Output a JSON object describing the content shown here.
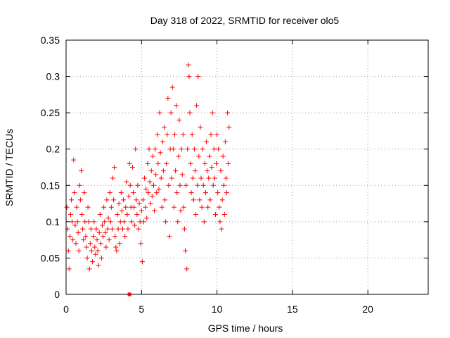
{
  "chart_data": {
    "type": "scatter",
    "title": "Day 318 of 2022, SRMTID for receiver olo5",
    "xlabel": "GPS time / hours",
    "ylabel": "SRMTID / TECUs",
    "xlim": [
      0,
      24
    ],
    "ylim": [
      0,
      0.35
    ],
    "xticks": [
      0,
      5,
      10,
      15,
      20
    ],
    "xtick_labels": [
      "0",
      "5",
      "10",
      "15",
      "20"
    ],
    "yticks": [
      0,
      0.05,
      0.1,
      0.15,
      0.2,
      0.25,
      0.3,
      0.35
    ],
    "ytick_labels": [
      "0",
      "0.05",
      "0.1",
      "0.15",
      "0.2",
      "0.25",
      "0.3",
      "0.35"
    ],
    "grid": true,
    "marker": "+",
    "color": "#ff0000",
    "outlier_marker": {
      "x": 4.2,
      "y": 0.0,
      "shape": "square"
    },
    "series": [
      {
        "name": "SRMTID",
        "points": [
          [
            0.05,
            0.12
          ],
          [
            0.1,
            0.09
          ],
          [
            0.15,
            0.06
          ],
          [
            0.2,
            0.035
          ],
          [
            0.25,
            0.08
          ],
          [
            0.3,
            0.11
          ],
          [
            0.35,
            0.13
          ],
          [
            0.4,
            0.1
          ],
          [
            0.45,
            0.075
          ],
          [
            0.5,
            0.185
          ],
          [
            0.55,
            0.14
          ],
          [
            0.6,
            0.095
          ],
          [
            0.65,
            0.07
          ],
          [
            0.7,
            0.12
          ],
          [
            0.75,
            0.1
          ],
          [
            0.8,
            0.085
          ],
          [
            0.85,
            0.06
          ],
          [
            0.9,
            0.15
          ],
          [
            0.95,
            0.13
          ],
          [
            1.0,
            0.17
          ],
          [
            1.05,
            0.11
          ],
          [
            1.1,
            0.09
          ],
          [
            1.15,
            0.075
          ],
          [
            1.2,
            0.14
          ],
          [
            1.25,
            0.1
          ],
          [
            1.3,
            0.08
          ],
          [
            1.35,
            0.065
          ],
          [
            1.4,
            0.05
          ],
          [
            1.45,
            0.12
          ],
          [
            1.5,
            0.1
          ],
          [
            1.55,
            0.035
          ],
          [
            1.6,
            0.07
          ],
          [
            1.65,
            0.09
          ],
          [
            1.7,
            0.06
          ],
          [
            1.75,
            0.045
          ],
          [
            1.8,
            0.08
          ],
          [
            1.85,
            0.1
          ],
          [
            1.9,
            0.065
          ],
          [
            1.95,
            0.055
          ],
          [
            2.0,
            0.09
          ],
          [
            2.05,
            0.075
          ],
          [
            2.1,
            0.06
          ],
          [
            2.15,
            0.04
          ],
          [
            2.2,
            0.085
          ],
          [
            2.25,
            0.11
          ],
          [
            2.3,
            0.07
          ],
          [
            2.35,
            0.05
          ],
          [
            2.4,
            0.095
          ],
          [
            2.45,
            0.08
          ],
          [
            2.5,
            0.12
          ],
          [
            2.55,
            0.1
          ],
          [
            2.6,
            0.085
          ],
          [
            2.65,
            0.065
          ],
          [
            2.7,
            0.13
          ],
          [
            2.75,
            0.09
          ],
          [
            2.8,
            0.105
          ],
          [
            2.85,
            0.075
          ],
          [
            2.9,
            0.14
          ],
          [
            2.95,
            0.1
          ],
          [
            3.0,
            0.12
          ],
          [
            3.05,
            0.09
          ],
          [
            3.1,
            0.16
          ],
          [
            3.15,
            0.13
          ],
          [
            3.2,
            0.175
          ],
          [
            3.25,
            0.08
          ],
          [
            3.3,
            0.065
          ],
          [
            3.35,
            0.06
          ],
          [
            3.4,
            0.11
          ],
          [
            3.45,
            0.09
          ],
          [
            3.5,
            0.125
          ],
          [
            3.55,
            0.07
          ],
          [
            3.6,
            0.1
          ],
          [
            3.65,
            0.14
          ],
          [
            3.7,
            0.115
          ],
          [
            3.75,
            0.09
          ],
          [
            3.8,
            0.13
          ],
          [
            3.85,
            0.1
          ],
          [
            3.9,
            0.08
          ],
          [
            3.95,
            0.12
          ],
          [
            4.0,
            0.155
          ],
          [
            4.05,
            0.11
          ],
          [
            4.1,
            0.09
          ],
          [
            4.15,
            0.135
          ],
          [
            4.2,
            0.18
          ],
          [
            4.25,
            0.15
          ],
          [
            4.3,
            0.12
          ],
          [
            4.35,
            0.1
          ],
          [
            4.4,
            0.175
          ],
          [
            4.45,
            0.14
          ],
          [
            4.5,
            0.12
          ],
          [
            4.55,
            0.095
          ],
          [
            4.6,
            0.2
          ],
          [
            4.65,
            0.13
          ],
          [
            4.7,
            0.11
          ],
          [
            4.75,
            0.15
          ],
          [
            4.8,
            0.09
          ],
          [
            4.85,
            0.125
          ],
          [
            4.9,
            0.1
          ],
          [
            4.95,
            0.07
          ],
          [
            5.0,
            0.115
          ],
          [
            5.05,
            0.045
          ],
          [
            5.1,
            0.13
          ],
          [
            5.15,
            0.1
          ],
          [
            5.2,
            0.16
          ],
          [
            5.25,
            0.12
          ],
          [
            5.3,
            0.145
          ],
          [
            5.35,
            0.105
          ],
          [
            5.4,
            0.18
          ],
          [
            5.45,
            0.14
          ],
          [
            5.5,
            0.2
          ],
          [
            5.55,
            0.155
          ],
          [
            5.6,
            0.125
          ],
          [
            5.65,
            0.17
          ],
          [
            5.7,
            0.135
          ],
          [
            5.75,
            0.19
          ],
          [
            5.8,
            0.15
          ],
          [
            5.85,
            0.115
          ],
          [
            5.9,
            0.2
          ],
          [
            5.95,
            0.165
          ],
          [
            6.0,
            0.14
          ],
          [
            6.05,
            0.22
          ],
          [
            6.1,
            0.18
          ],
          [
            6.15,
            0.145
          ],
          [
            6.2,
            0.25
          ],
          [
            6.25,
            0.195
          ],
          [
            6.3,
            0.16
          ],
          [
            6.35,
            0.12
          ],
          [
            6.4,
            0.21
          ],
          [
            6.45,
            0.17
          ],
          [
            6.5,
            0.23
          ],
          [
            6.55,
            0.13
          ],
          [
            6.6,
            0.1
          ],
          [
            6.65,
            0.18
          ],
          [
            6.7,
            0.22
          ],
          [
            6.75,
            0.27
          ],
          [
            6.8,
            0.15
          ],
          [
            6.85,
            0.08
          ],
          [
            6.9,
            0.2
          ],
          [
            6.95,
            0.25
          ],
          [
            7.0,
            0.16
          ],
          [
            7.05,
            0.285
          ],
          [
            7.1,
            0.2
          ],
          [
            7.15,
            0.12
          ],
          [
            7.2,
            0.22
          ],
          [
            7.25,
            0.17
          ],
          [
            7.3,
            0.26
          ],
          [
            7.35,
            0.14
          ],
          [
            7.4,
            0.1
          ],
          [
            7.45,
            0.19
          ],
          [
            7.5,
            0.24
          ],
          [
            7.55,
            0.15
          ],
          [
            7.6,
            0.115
          ],
          [
            7.65,
            0.2
          ],
          [
            7.7,
            0.165
          ],
          [
            7.75,
            0.22
          ],
          [
            7.8,
            0.12
          ],
          [
            7.85,
            0.09
          ],
          [
            7.9,
            0.06
          ],
          [
            7.95,
            0.15
          ],
          [
            8.0,
            0.035
          ],
          [
            8.05,
            0.2
          ],
          [
            8.1,
            0.316
          ],
          [
            8.15,
            0.3
          ],
          [
            8.2,
            0.25
          ],
          [
            8.25,
            0.18
          ],
          [
            8.3,
            0.14
          ],
          [
            8.35,
            0.22
          ],
          [
            8.4,
            0.16
          ],
          [
            8.45,
            0.13
          ],
          [
            8.5,
            0.2
          ],
          [
            8.55,
            0.17
          ],
          [
            8.6,
            0.11
          ],
          [
            8.65,
            0.26
          ],
          [
            8.7,
            0.15
          ],
          [
            8.75,
            0.3
          ],
          [
            8.8,
            0.19
          ],
          [
            8.85,
            0.13
          ],
          [
            8.9,
            0.23
          ],
          [
            8.95,
            0.16
          ],
          [
            9.0,
            0.12
          ],
          [
            9.05,
            0.2
          ],
          [
            9.1,
            0.15
          ],
          [
            9.15,
            0.1
          ],
          [
            9.2,
            0.18
          ],
          [
            9.25,
            0.14
          ],
          [
            9.3,
            0.21
          ],
          [
            9.35,
            0.17
          ],
          [
            9.4,
            0.12
          ],
          [
            9.45,
            0.16
          ],
          [
            9.5,
            0.19
          ],
          [
            9.55,
            0.13
          ],
          [
            9.6,
            0.22
          ],
          [
            9.65,
            0.175
          ],
          [
            9.7,
            0.25
          ],
          [
            9.75,
            0.15
          ],
          [
            9.8,
            0.2
          ],
          [
            9.85,
            0.16
          ],
          [
            9.9,
            0.11
          ],
          [
            9.95,
            0.18
          ],
          [
            10.0,
            0.22
          ],
          [
            10.05,
            0.14
          ],
          [
            10.1,
            0.2
          ],
          [
            10.15,
            0.12
          ],
          [
            10.2,
            0.1
          ],
          [
            10.25,
            0.17
          ],
          [
            10.3,
            0.09
          ],
          [
            10.35,
            0.13
          ],
          [
            10.4,
            0.19
          ],
          [
            10.45,
            0.15
          ],
          [
            10.5,
            0.11
          ],
          [
            10.55,
            0.21
          ],
          [
            10.6,
            0.16
          ],
          [
            10.65,
            0.14
          ],
          [
            10.7,
            0.25
          ],
          [
            10.75,
            0.18
          ],
          [
            10.8,
            0.23
          ]
        ]
      }
    ]
  }
}
